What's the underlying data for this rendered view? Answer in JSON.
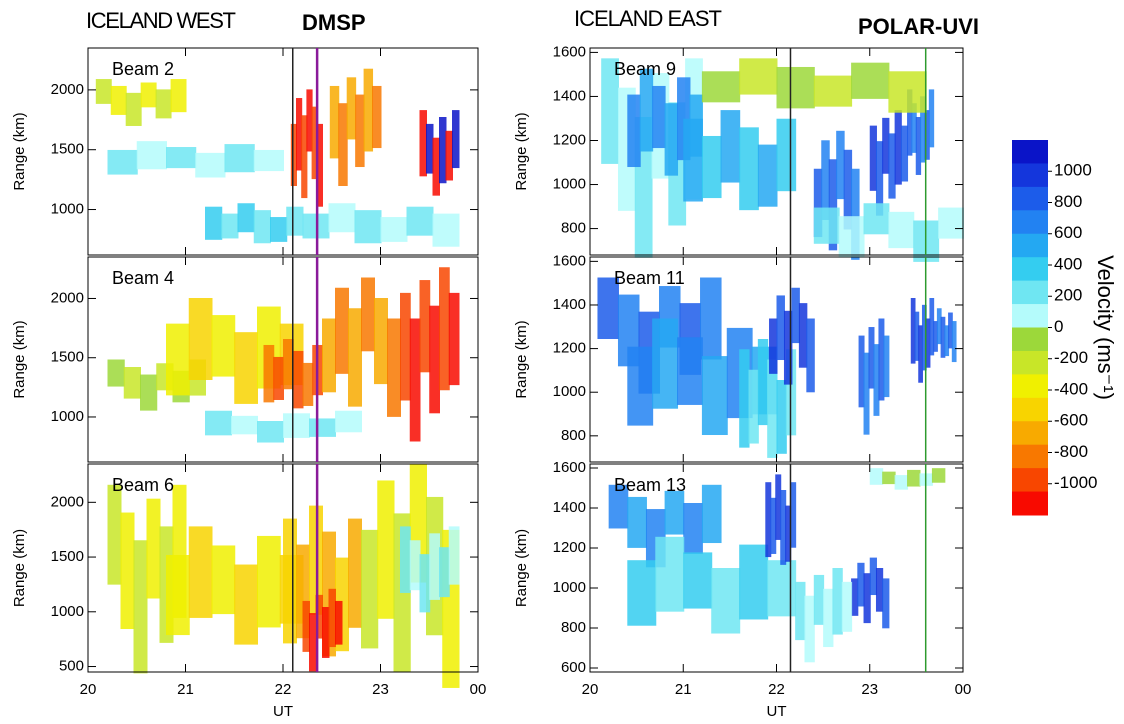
{
  "chart_data": {
    "type": "heatmap",
    "headings": [
      "ICELAND WEST",
      "DMSP",
      "ICELAND EAST",
      "POLAR-UVI"
    ],
    "xlabel": "UT",
    "xlim": [
      20,
      24
    ],
    "xticks": [
      20,
      21,
      22,
      23,
      {
        "value": 24,
        "label": "00"
      }
    ],
    "panels": [
      {
        "title": "Beam 2",
        "ylabel": "Range (km)",
        "ylim": [
          620,
          2350
        ],
        "yticks": [
          1000,
          1500,
          2000
        ],
        "markers": [
          {
            "x": 22.1,
            "color": "#222222"
          },
          {
            "x": 22.35,
            "color": "#8a1a9a"
          }
        ]
      },
      {
        "title": "Beam 4",
        "ylabel": "Range (km)",
        "ylim": [
          620,
          2350
        ],
        "yticks": [
          1000,
          1500,
          2000
        ],
        "markers": [
          {
            "x": 22.1,
            "color": "#222222"
          },
          {
            "x": 22.35,
            "color": "#8a1a9a"
          }
        ]
      },
      {
        "title": "Beam 6",
        "ylabel": "Range (km)",
        "ylim": [
          450,
          2350
        ],
        "yticks": [
          500,
          1000,
          1500,
          2000
        ],
        "markers": [
          {
            "x": 22.1,
            "color": "#222222"
          },
          {
            "x": 22.35,
            "color": "#8a1a9a"
          }
        ]
      },
      {
        "title": "Beam 9",
        "ylabel": "Range (km)",
        "ylim": [
          680,
          1620
        ],
        "yticks": [
          800,
          1000,
          1200,
          1400,
          1600
        ],
        "markers": [
          {
            "x": 22.15,
            "color": "#222222"
          },
          {
            "x": 23.6,
            "color": "#2e9a2e"
          }
        ]
      },
      {
        "title": "Beam 11",
        "ylabel": "Range (km)",
        "ylim": [
          680,
          1620
        ],
        "yticks": [
          800,
          1000,
          1200,
          1400,
          1600
        ],
        "markers": [
          {
            "x": 22.15,
            "color": "#222222"
          },
          {
            "x": 23.6,
            "color": "#2e9a2e"
          }
        ]
      },
      {
        "title": "Beam 13",
        "ylabel": "Range (km)",
        "ylim": [
          580,
          1620
        ],
        "yticks": [
          600,
          800,
          1000,
          1200,
          1400,
          1600
        ],
        "markers": [
          {
            "x": 22.15,
            "color": "#222222"
          },
          {
            "x": 23.6,
            "color": "#2e9a2e"
          }
        ]
      }
    ],
    "colorbar": {
      "label": "Velocity (ms⁻¹)",
      "lim": [
        -1200,
        1200
      ],
      "ticks": [
        1000,
        800,
        600,
        400,
        200,
        0,
        -200,
        -400,
        -600,
        -800,
        -1000
      ],
      "colors": [
        "#0a14c8",
        "#1436dc",
        "#1c5cea",
        "#2282f2",
        "#24a8f2",
        "#34cdf0",
        "#6fe6f2",
        "#b4fbfb",
        "#9cd83a",
        "#c8e628",
        "#f0f000",
        "#f8d400",
        "#f8aa00",
        "#f87800",
        "#f84600",
        "#f80a00"
      ]
    }
  }
}
